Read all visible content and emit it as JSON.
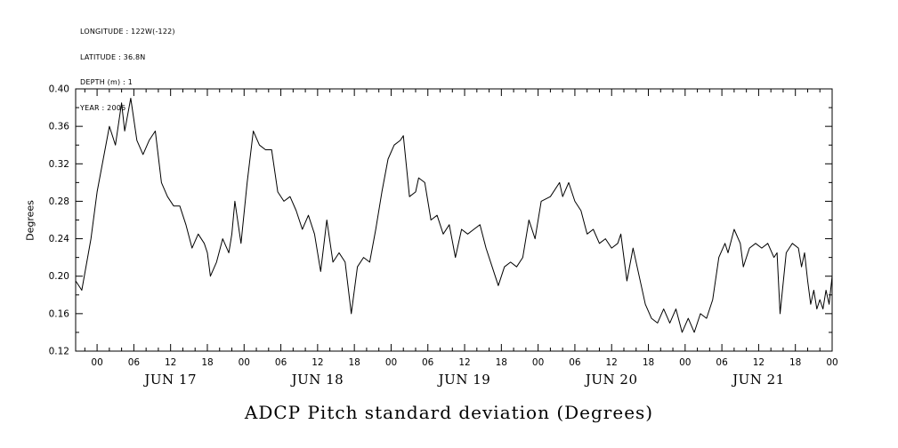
{
  "header": {
    "lines": [
      "LONGITUDE : 122W(-122)",
      "LATITUDE : 36.8N",
      "DEPTH (m) : 1",
      "YEAR : 2006"
    ]
  },
  "chart_data": {
    "type": "line",
    "title": "ADCP Pitch standard deviation (Degrees)",
    "xlabel": "",
    "ylabel": "Degrees",
    "ylim": [
      0.12,
      0.4
    ],
    "xlim": [
      -3.5,
      120
    ],
    "grid": false,
    "legend": "none",
    "line_color": "#000000",
    "background_color": "#ffffff",
    "ytick_values": [
      0.12,
      0.16,
      0.2,
      0.24,
      0.28,
      0.32,
      0.36,
      0.4
    ],
    "ytick_labels": [
      "0.12",
      "0.16",
      "0.20",
      "0.24",
      "0.28",
      "0.32",
      "0.36",
      "0.40"
    ],
    "ytick_minor_step": 0.02,
    "xtick_hours": [
      0,
      6,
      12,
      18,
      24,
      30,
      36,
      42,
      48,
      54,
      60,
      66,
      72,
      78,
      84,
      90,
      96,
      102,
      108,
      114,
      120
    ],
    "xtick_labels": [
      "00",
      "06",
      "12",
      "18",
      "00",
      "06",
      "12",
      "18",
      "00",
      "06",
      "12",
      "18",
      "00",
      "06",
      "12",
      "18",
      "00",
      "06",
      "12",
      "18",
      "00"
    ],
    "xtick_minor_step": 2,
    "day_labels": [
      "JUN 17",
      "JUN 18",
      "JUN 19",
      "JUN 20",
      "JUN 21"
    ],
    "day_label_hours": [
      12,
      36,
      60,
      84,
      108
    ],
    "series": [
      {
        "name": "ADCP pitch standard deviation",
        "units": "Degrees",
        "x_units": "hours since JUN 17 2006 00:00",
        "points": [
          [
            -3.5,
            0.195
          ],
          [
            -2.5,
            0.185
          ],
          [
            -1,
            0.24
          ],
          [
            0,
            0.29
          ],
          [
            1,
            0.325
          ],
          [
            2,
            0.36
          ],
          [
            3,
            0.34
          ],
          [
            4,
            0.385
          ],
          [
            4.5,
            0.355
          ],
          [
            5.5,
            0.39
          ],
          [
            6.5,
            0.345
          ],
          [
            7.5,
            0.33
          ],
          [
            8.5,
            0.345
          ],
          [
            9.5,
            0.355
          ],
          [
            10.5,
            0.3
          ],
          [
            11.5,
            0.285
          ],
          [
            12.5,
            0.275
          ],
          [
            13.5,
            0.275
          ],
          [
            14.5,
            0.255
          ],
          [
            15.5,
            0.23
          ],
          [
            16.5,
            0.245
          ],
          [
            17.5,
            0.235
          ],
          [
            18,
            0.225
          ],
          [
            18.5,
            0.2
          ],
          [
            19.5,
            0.215
          ],
          [
            20.5,
            0.24
          ],
          [
            21.5,
            0.225
          ],
          [
            22,
            0.245
          ],
          [
            22.5,
            0.28
          ],
          [
            23.5,
            0.235
          ],
          [
            24.5,
            0.3
          ],
          [
            25.5,
            0.355
          ],
          [
            26.5,
            0.34
          ],
          [
            27.5,
            0.335
          ],
          [
            28.5,
            0.335
          ],
          [
            29.5,
            0.29
          ],
          [
            30.5,
            0.28
          ],
          [
            31.5,
            0.285
          ],
          [
            32.5,
            0.27
          ],
          [
            33.5,
            0.25
          ],
          [
            34.5,
            0.265
          ],
          [
            35.5,
            0.245
          ],
          [
            36.5,
            0.205
          ],
          [
            37.5,
            0.26
          ],
          [
            38.5,
            0.215
          ],
          [
            39.5,
            0.225
          ],
          [
            40.5,
            0.215
          ],
          [
            41.5,
            0.16
          ],
          [
            42.5,
            0.21
          ],
          [
            43.5,
            0.22
          ],
          [
            44.5,
            0.215
          ],
          [
            45.5,
            0.25
          ],
          [
            46.5,
            0.29
          ],
          [
            47.5,
            0.325
          ],
          [
            48.5,
            0.34
          ],
          [
            49.5,
            0.345
          ],
          [
            50,
            0.35
          ],
          [
            51,
            0.285
          ],
          [
            52,
            0.29
          ],
          [
            52.5,
            0.305
          ],
          [
            53.5,
            0.3
          ],
          [
            54.5,
            0.26
          ],
          [
            55.5,
            0.265
          ],
          [
            56.5,
            0.245
          ],
          [
            57.5,
            0.255
          ],
          [
            58.5,
            0.22
          ],
          [
            59.5,
            0.25
          ],
          [
            60.5,
            0.245
          ],
          [
            61.5,
            0.25
          ],
          [
            62.5,
            0.255
          ],
          [
            63.5,
            0.23
          ],
          [
            64.5,
            0.21
          ],
          [
            65.5,
            0.19
          ],
          [
            66.5,
            0.21
          ],
          [
            67.5,
            0.215
          ],
          [
            68.5,
            0.21
          ],
          [
            69.5,
            0.22
          ],
          [
            70.5,
            0.26
          ],
          [
            71.5,
            0.24
          ],
          [
            72.5,
            0.28
          ],
          [
            74,
            0.285
          ],
          [
            75.5,
            0.3
          ],
          [
            76,
            0.285
          ],
          [
            77,
            0.3
          ],
          [
            78,
            0.28
          ],
          [
            79,
            0.27
          ],
          [
            80,
            0.245
          ],
          [
            81,
            0.25
          ],
          [
            82,
            0.235
          ],
          [
            83,
            0.24
          ],
          [
            84,
            0.23
          ],
          [
            85,
            0.235
          ],
          [
            85.5,
            0.245
          ],
          [
            86.5,
            0.195
          ],
          [
            87.5,
            0.23
          ],
          [
            88.5,
            0.2
          ],
          [
            89.5,
            0.17
          ],
          [
            90.5,
            0.155
          ],
          [
            91.5,
            0.15
          ],
          [
            92.5,
            0.165
          ],
          [
            93.5,
            0.15
          ],
          [
            94.5,
            0.165
          ],
          [
            95.5,
            0.14
          ],
          [
            96.5,
            0.155
          ],
          [
            97.5,
            0.14
          ],
          [
            98.5,
            0.16
          ],
          [
            99.5,
            0.155
          ],
          [
            100.5,
            0.175
          ],
          [
            101.5,
            0.22
          ],
          [
            102.5,
            0.235
          ],
          [
            103,
            0.225
          ],
          [
            104,
            0.25
          ],
          [
            105,
            0.235
          ],
          [
            105.5,
            0.21
          ],
          [
            106.5,
            0.23
          ],
          [
            107.5,
            0.235
          ],
          [
            108.5,
            0.23
          ],
          [
            109.5,
            0.235
          ],
          [
            110.5,
            0.22
          ],
          [
            111,
            0.225
          ],
          [
            111.5,
            0.16
          ],
          [
            112.5,
            0.225
          ],
          [
            113.5,
            0.235
          ],
          [
            114.5,
            0.23
          ],
          [
            115,
            0.21
          ],
          [
            115.5,
            0.225
          ],
          [
            116,
            0.195
          ],
          [
            116.5,
            0.17
          ],
          [
            117,
            0.185
          ],
          [
            117.5,
            0.165
          ],
          [
            118,
            0.175
          ],
          [
            118.5,
            0.165
          ],
          [
            119,
            0.185
          ],
          [
            119.5,
            0.17
          ],
          [
            120,
            0.2
          ]
        ]
      }
    ]
  }
}
